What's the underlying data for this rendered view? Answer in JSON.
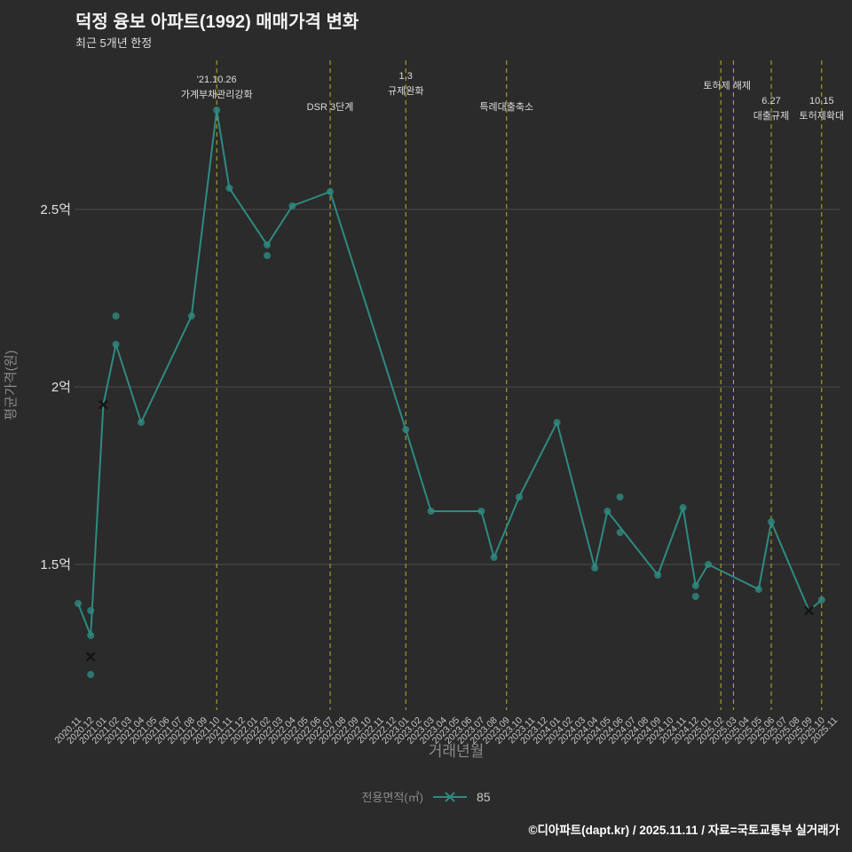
{
  "colors": {
    "background": "#2b2b2b",
    "title_text": "#f2f2f2",
    "subtitle_text": "#dddddd",
    "grid": "#4d4d4d",
    "series": "#2e8b82",
    "annotation_line": "#b8b22a",
    "annotation_text": "#dcdcdc",
    "xtick_text": "#c8c8c8",
    "ytick_text": "#e2e2e2",
    "axis_title_text": "#8a8a8a",
    "cancel_marker": "#141414",
    "footer_text": "#ffffff"
  },
  "chart_data": {
    "type": "line",
    "title": "덕정 융보 아파트(1992) 매매가격 변화",
    "subtitle": "최근 5개년 한정",
    "xlabel": "거래년월",
    "ylabel": "평균가격(원)",
    "unit": "억",
    "ylim": [
      1.09,
      2.92
    ],
    "grid": true,
    "legend_position": "bottom",
    "yticks": [
      {
        "v": 1.5,
        "label": "1.5억"
      },
      {
        "v": 2.0,
        "label": "2억"
      },
      {
        "v": 2.5,
        "label": "2.5억"
      }
    ],
    "x_categories": [
      "2020.11",
      "2020.12",
      "2021.01",
      "2021.02",
      "2021.03",
      "2021.04",
      "2021.05",
      "2021.06",
      "2021.07",
      "2021.08",
      "2021.09",
      "2021.10",
      "2021.11",
      "2021.12",
      "2022.01",
      "2022.02",
      "2022.03",
      "2022.04",
      "2022.05",
      "2022.06",
      "2022.07",
      "2022.08",
      "2022.09",
      "2022.10",
      "2022.11",
      "2022.12",
      "2023.01",
      "2023.02",
      "2023.03",
      "2023.04",
      "2023.05",
      "2023.06",
      "2023.07",
      "2023.08",
      "2023.09",
      "2023.10",
      "2023.11",
      "2023.12",
      "2024.01",
      "2024.02",
      "2024.03",
      "2024.04",
      "2024.05",
      "2024.06",
      "2024.07",
      "2024.08",
      "2024.09",
      "2024.10",
      "2024.11",
      "2024.12",
      "2025.01",
      "2025.02",
      "2025.03",
      "2025.04",
      "2025.05",
      "2025.06",
      "2025.07",
      "2025.08",
      "2025.09",
      "2025.10",
      "2025.11"
    ],
    "series": [
      {
        "name": "85",
        "line_points": [
          [
            "2020.11",
            1.39
          ],
          [
            "2020.12",
            1.3
          ],
          [
            "2021.01",
            1.95
          ],
          [
            "2021.02",
            2.12
          ],
          [
            "2021.04",
            1.9
          ],
          [
            "2021.08",
            2.2
          ],
          [
            "2021.10",
            2.78
          ],
          [
            "2021.11",
            2.56
          ],
          [
            "2022.02",
            2.4
          ],
          [
            "2022.04",
            2.51
          ],
          [
            "2022.07",
            2.55
          ],
          [
            "2023.01",
            1.88
          ],
          [
            "2023.03",
            1.65
          ],
          [
            "2023.07",
            1.65
          ],
          [
            "2023.08",
            1.52
          ],
          [
            "2023.10",
            1.69
          ],
          [
            "2024.01",
            1.9
          ],
          [
            "2024.04",
            1.49
          ],
          [
            "2024.05",
            1.65
          ],
          [
            "2024.09",
            1.47
          ],
          [
            "2024.11",
            1.66
          ],
          [
            "2024.12",
            1.44
          ],
          [
            "2025.01",
            1.5
          ],
          [
            "2025.05",
            1.43
          ],
          [
            "2025.06",
            1.62
          ],
          [
            "2025.09",
            1.37
          ],
          [
            "2025.10",
            1.4
          ]
        ]
      }
    ],
    "scatter_points": [
      [
        "2020.12",
        1.37
      ],
      [
        "2020.12",
        1.19
      ],
      [
        "2021.02",
        2.2
      ],
      [
        "2022.02",
        2.37
      ],
      [
        "2024.06",
        1.69
      ],
      [
        "2024.06",
        1.59
      ],
      [
        "2024.12",
        1.41
      ]
    ],
    "cancelled_points": [
      [
        "2020.12",
        1.24
      ],
      [
        "2021.01",
        1.95
      ],
      [
        "2025.09",
        1.37
      ]
    ],
    "annotations": [
      {
        "month": "2021.10",
        "texts": [
          "'21.10.26",
          "가계부채관리강화"
        ],
        "baseline": 93
      },
      {
        "month": "2022.07",
        "texts": [
          "DSR 3단계"
        ],
        "baseline": 124
      },
      {
        "month": "2023.01",
        "texts": [
          "1.3",
          "규제완화"
        ],
        "baseline": 89
      },
      {
        "month": "2023.09",
        "texts": [
          "특례대출축소"
        ],
        "baseline": 124
      },
      {
        "month": "2025.02",
        "texts": [
          "토허제 해제"
        ],
        "baseline": 100,
        "dx": 7
      },
      {
        "month": "2025.03",
        "texts": []
      },
      {
        "month": "2025.06",
        "texts": [
          "6.27",
          "대출규제"
        ],
        "baseline": 117
      },
      {
        "month": "2025.10",
        "texts": [
          "10.15",
          "토허제확대"
        ],
        "baseline": 117
      }
    ],
    "legend": {
      "label": "전용면적(㎡)",
      "series": "85"
    }
  },
  "footer": {
    "credit": "©디아파트(dapt.kr) / 2025.11.11 / 자료=국토교통부 실거래가"
  }
}
